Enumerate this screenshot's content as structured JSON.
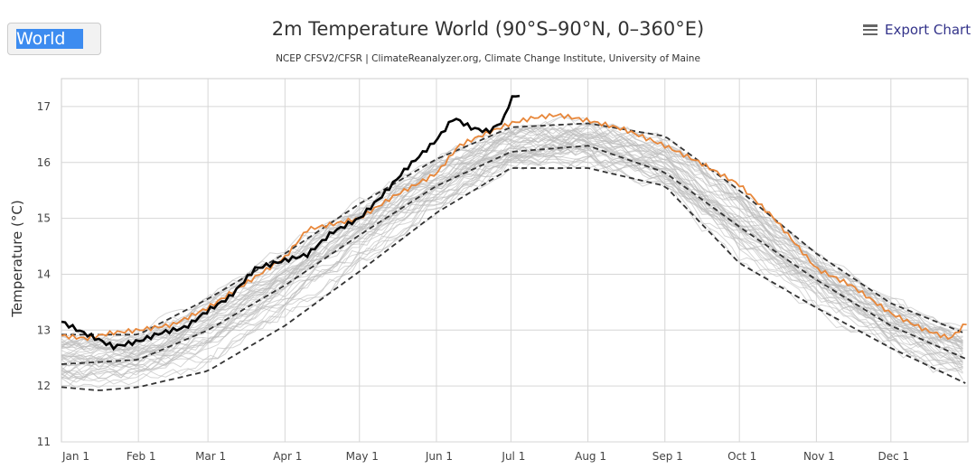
{
  "region_select": {
    "value": "World"
  },
  "export_label": "Export Chart",
  "export_icon": "hamburger-menu-icon",
  "chart_data": {
    "type": "line",
    "title": "2m Temperature World (90°S–90°N, 0–360°E)",
    "subtitle": "NCEP CFSV2/CFSR | ClimateReanalyzer.org, Climate Change Institute, University of Maine",
    "ylabel": "Temperature (°C)",
    "xlabel": "",
    "ylim": [
      11,
      17.5
    ],
    "yticks": [
      11,
      12,
      13,
      14,
      15,
      16,
      17
    ],
    "xticks": [
      {
        "label": "Jan 1",
        "day": 0
      },
      {
        "label": "Feb 1",
        "day": 31
      },
      {
        "label": "Mar 1",
        "day": 59
      },
      {
        "label": "Apr 1",
        "day": 90
      },
      {
        "label": "May 1",
        "day": 120
      },
      {
        "label": "Jun 1",
        "day": 151
      },
      {
        "label": "Jul 1",
        "day": 181
      },
      {
        "label": "Aug 1",
        "day": 212
      },
      {
        "label": "Sep 1",
        "day": 243
      },
      {
        "label": "Oct 1",
        "day": 273
      },
      {
        "label": "Nov 1",
        "day": 304
      },
      {
        "label": "Dec 1",
        "day": 334
      }
    ],
    "xlim": [
      0,
      365
    ],
    "grid": true,
    "series": [
      {
        "name": "mean",
        "style": "dashed",
        "color": "#333333",
        "x": [
          0,
          31,
          59,
          90,
          120,
          151,
          181,
          212,
          243,
          273,
          304,
          334,
          365
        ],
        "y": [
          12.39,
          12.47,
          13.0,
          13.8,
          14.7,
          15.58,
          16.19,
          16.3,
          15.82,
          14.85,
          13.9,
          13.08,
          12.47
        ]
      },
      {
        "name": "plus_2_sigma",
        "style": "dashed",
        "color": "#333333",
        "x": [
          0,
          31,
          59,
          90,
          120,
          151,
          181,
          212,
          243,
          273,
          304,
          334,
          365
        ],
        "y": [
          12.92,
          12.92,
          13.56,
          14.37,
          15.26,
          16.06,
          16.63,
          16.7,
          16.47,
          15.5,
          14.37,
          13.48,
          12.92
        ]
      },
      {
        "name": "minus_2_sigma",
        "style": "dashed",
        "color": "#333333",
        "x": [
          0,
          15,
          31,
          59,
          90,
          120,
          151,
          181,
          212,
          243,
          273,
          304,
          334,
          365
        ],
        "y": [
          11.98,
          11.92,
          11.98,
          12.27,
          13.08,
          14.05,
          15.1,
          15.9,
          15.9,
          15.58,
          14.2,
          13.4,
          12.68,
          12.03
        ]
      },
      {
        "name": "orange_year",
        "style": "solid",
        "color": "#e8873a",
        "x": [
          0,
          10,
          20,
          31,
          45,
          59,
          73,
          90,
          99,
          120,
          134,
          151,
          160,
          170,
          181,
          190,
          200,
          212,
          226,
          243,
          257,
          273,
          287,
          304,
          318,
          334,
          348,
          358,
          365
        ],
        "y": [
          12.9,
          12.85,
          12.95,
          13.0,
          13.1,
          13.4,
          13.8,
          14.3,
          14.8,
          15.0,
          15.4,
          15.8,
          16.3,
          16.5,
          16.7,
          16.8,
          16.85,
          16.75,
          16.6,
          16.3,
          16.0,
          15.6,
          15.0,
          14.1,
          13.8,
          13.3,
          13.0,
          12.85,
          13.15
        ]
      },
      {
        "name": "current_year",
        "style": "solid",
        "color": "#000000",
        "x": [
          0,
          9,
          14,
          21,
          31,
          40,
          50,
          59,
          68,
          78,
          90,
          99,
          109,
          120,
          129,
          139,
          151,
          158,
          165,
          172,
          178,
          181,
          185
        ],
        "y": [
          13.15,
          12.95,
          12.85,
          12.7,
          12.8,
          12.95,
          13.05,
          13.35,
          13.6,
          14.1,
          14.25,
          14.35,
          14.75,
          15.0,
          15.4,
          15.9,
          16.4,
          16.8,
          16.62,
          16.55,
          16.75,
          17.15,
          17.22
        ]
      }
    ],
    "ensemble": {
      "name": "historical_years",
      "color": "#bbbbbb",
      "count": 44
    }
  }
}
